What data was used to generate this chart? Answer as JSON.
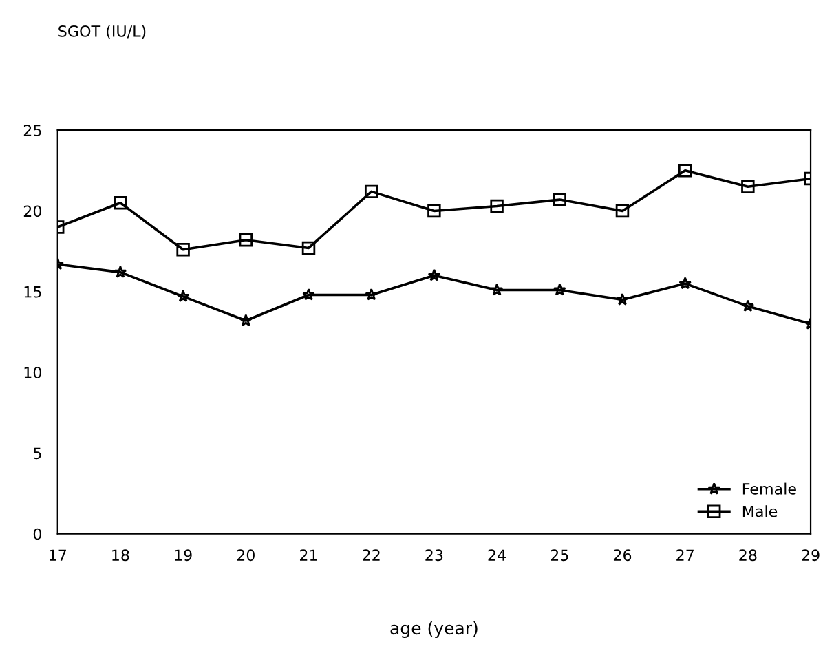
{
  "chart_data": {
    "type": "line",
    "annotations": [
      "SGOT (IU/L)"
    ],
    "xlabel": "age (year)",
    "x": [
      17,
      18,
      19,
      20,
      21,
      22,
      23,
      24,
      25,
      26,
      27,
      28,
      29
    ],
    "xlim": [
      17,
      29
    ],
    "xticks": [
      17,
      18,
      19,
      20,
      21,
      22,
      23,
      24,
      25,
      26,
      27,
      28,
      29
    ],
    "ylim": [
      0,
      25
    ],
    "yticks": [
      0,
      5,
      10,
      15,
      20,
      25
    ],
    "grid": false,
    "legend": "bottom right",
    "series": [
      {
        "name": "Female",
        "color": "#000000",
        "marker": "star",
        "values": [
          16.7,
          16.2,
          14.7,
          13.2,
          14.8,
          14.8,
          16.0,
          15.1,
          15.1,
          14.5,
          15.5,
          14.1,
          13.0
        ]
      },
      {
        "name": "Male",
        "color": "#000000",
        "marker": "square",
        "values": [
          19.0,
          20.5,
          17.6,
          18.2,
          17.7,
          21.2,
          20.0,
          20.3,
          20.7,
          20.0,
          22.5,
          21.5,
          22.0
        ]
      }
    ]
  }
}
